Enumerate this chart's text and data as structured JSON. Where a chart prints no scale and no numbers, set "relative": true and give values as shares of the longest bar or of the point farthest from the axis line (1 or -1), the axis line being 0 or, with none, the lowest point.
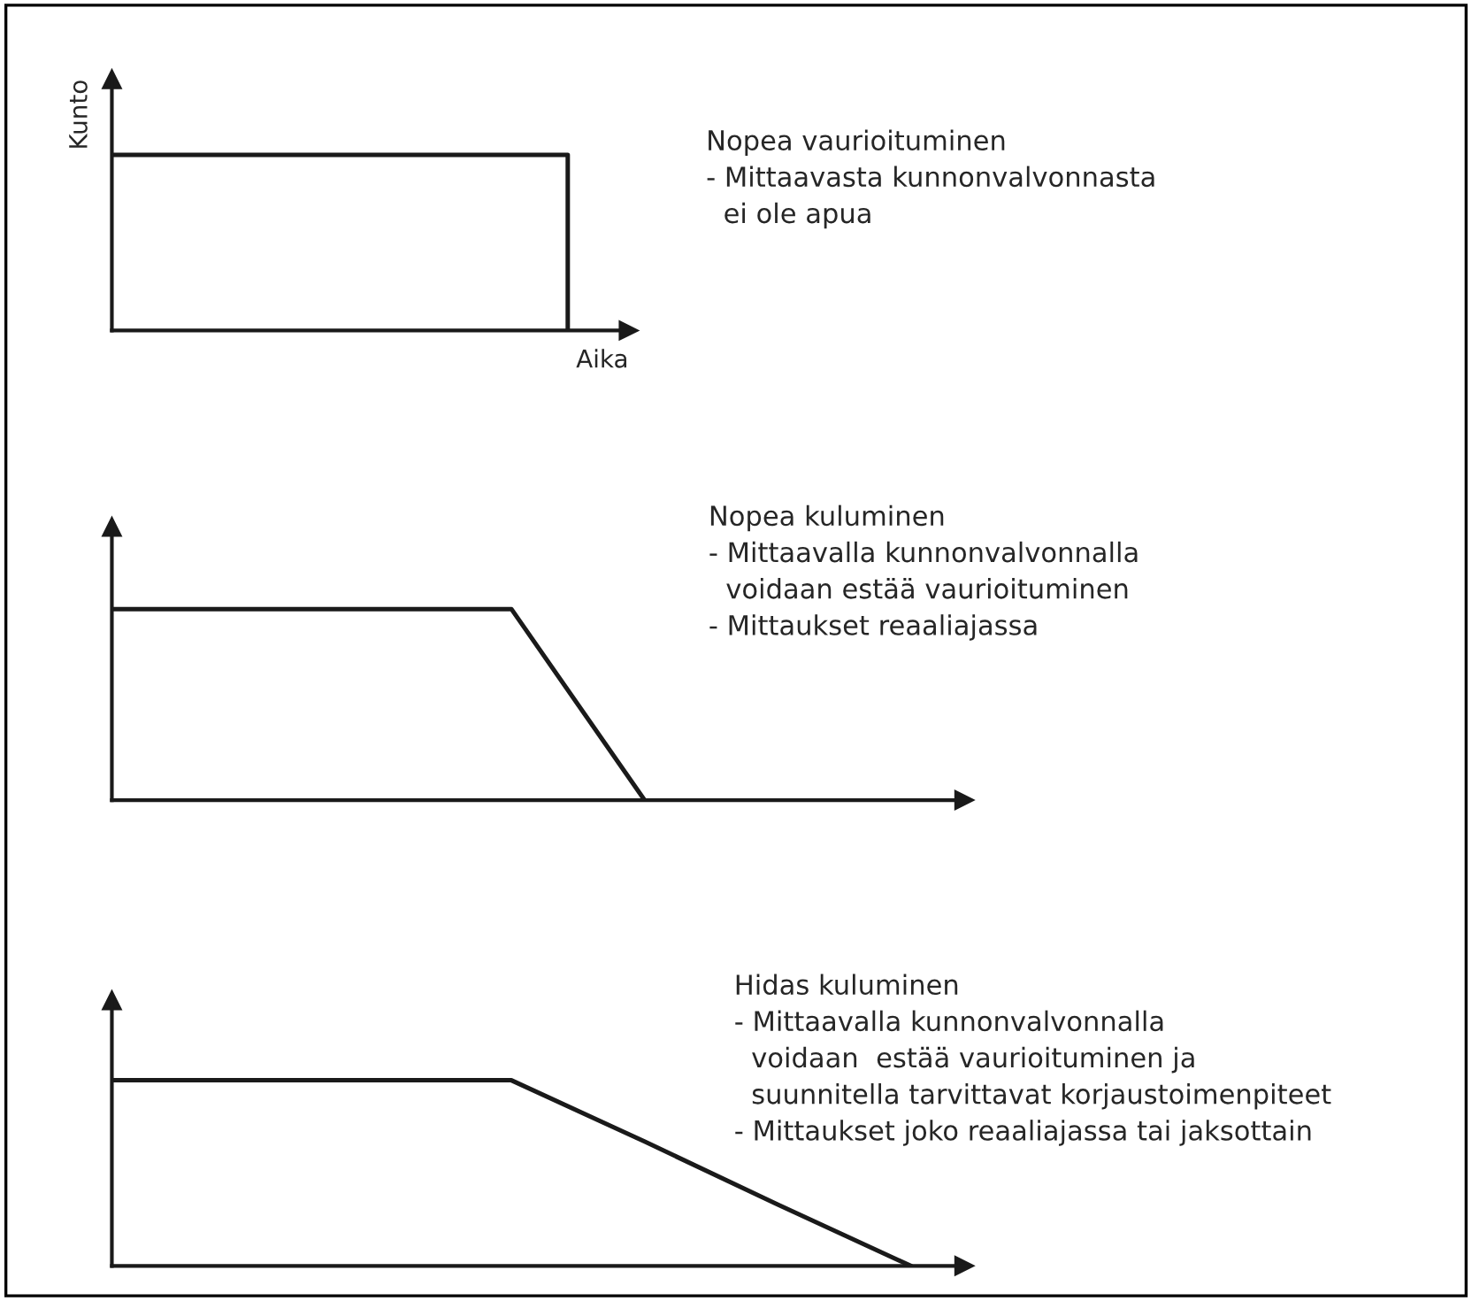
{
  "chart_data": [
    {
      "type": "step",
      "relative": true,
      "xlabel": "Aika",
      "ylabel": "Kunto",
      "categories": [
        null,
        null,
        null,
        null
      ],
      "series": [
        {
          "color": "#1a1a1a",
          "values": [
            1,
            1,
            1,
            0
          ]
        }
      ],
      "annotations": [
        "Nopea vaurioituminen\n- Mittaavasta kunnonvalvonnasta\n  ei ole apua"
      ]
    },
    {
      "type": "line",
      "relative": true,
      "categories": [
        null,
        null,
        null,
        null,
        null,
        null,
        null
      ],
      "series": [
        {
          "color": "#1a1a1a",
          "values": [
            1,
            1,
            1,
            1,
            0,
            null,
            null
          ]
        }
      ],
      "annotations": [
        "Nopea kuluminen\n- Mittaavalla kunnonvalvonnalla\n  voidaan estää vaurioituminen\n- Mittaukset reaaliajassa"
      ]
    },
    {
      "type": "line",
      "relative": true,
      "categories": [
        null,
        null,
        null,
        null,
        null,
        null,
        null
      ],
      "series": [
        {
          "color": "#1a1a1a",
          "values": [
            1,
            1,
            1,
            1,
            0.67,
            0.33,
            0
          ]
        }
      ],
      "annotations": [
        "Hidas kuluminen\n- Mittaavalla kunnonvalvonnalla\n  voidaan  estää vaurioituminen ja\n  suunnitella tarvittavat korjaustoimenpiteet\n- Mittaukset joko reaaliajassa tai jaksottain"
      ]
    }
  ]
}
